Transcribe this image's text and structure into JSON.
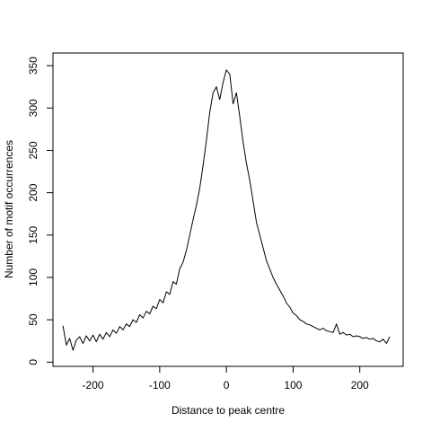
{
  "chart_data": {
    "type": "line",
    "title": "",
    "xlabel": "Distance to peak centre",
    "ylabel": "Number of motif occurrences",
    "xlim": [
      -260,
      265
    ],
    "ylim": [
      -5,
      365
    ],
    "x_ticks": [
      -200,
      -100,
      0,
      100,
      200
    ],
    "x_tick_labels": [
      "-200",
      "-100",
      "0",
      "100",
      "200"
    ],
    "y_ticks": [
      0,
      50,
      100,
      150,
      200,
      250,
      300,
      350
    ],
    "y_tick_labels": [
      "0",
      "50",
      "100",
      "150",
      "200",
      "250",
      "300",
      "350"
    ],
    "grid": false,
    "series": [
      {
        "color": "#000000",
        "x": [
          -245,
          -240,
          -235,
          -230,
          -225,
          -220,
          -215,
          -210,
          -205,
          -200,
          -195,
          -190,
          -185,
          -180,
          -175,
          -170,
          -165,
          -160,
          -155,
          -150,
          -145,
          -140,
          -135,
          -130,
          -125,
          -120,
          -115,
          -110,
          -105,
          -100,
          -95,
          -90,
          -85,
          -80,
          -75,
          -70,
          -65,
          -60,
          -55,
          -50,
          -45,
          -40,
          -35,
          -30,
          -25,
          -20,
          -15,
          -10,
          -5,
          0,
          5,
          10,
          15,
          20,
          25,
          30,
          35,
          40,
          45,
          50,
          55,
          60,
          65,
          70,
          75,
          80,
          85,
          90,
          95,
          100,
          105,
          110,
          115,
          120,
          125,
          130,
          135,
          140,
          145,
          150,
          155,
          160,
          165,
          170,
          175,
          180,
          185,
          190,
          195,
          200,
          205,
          210,
          215,
          220,
          225,
          230,
          235,
          240,
          245
        ],
        "values": [
          43,
          20,
          28,
          14,
          26,
          30,
          22,
          31,
          25,
          32,
          24,
          33,
          27,
          35,
          30,
          38,
          34,
          42,
          38,
          45,
          42,
          50,
          47,
          56,
          52,
          60,
          57,
          66,
          63,
          74,
          70,
          83,
          80,
          95,
          92,
          110,
          118,
          132,
          150,
          168,
          185,
          205,
          232,
          262,
          295,
          318,
          325,
          310,
          330,
          345,
          340,
          305,
          318,
          290,
          260,
          235,
          215,
          190,
          165,
          150,
          135,
          120,
          110,
          100,
          92,
          85,
          78,
          70,
          65,
          58,
          55,
          50,
          48,
          45,
          44,
          42,
          40,
          38,
          40,
          37,
          36,
          35,
          45,
          33,
          35,
          32,
          33,
          30,
          31,
          30,
          28,
          29,
          27,
          28,
          25,
          24,
          27,
          22,
          30
        ]
      }
    ]
  }
}
